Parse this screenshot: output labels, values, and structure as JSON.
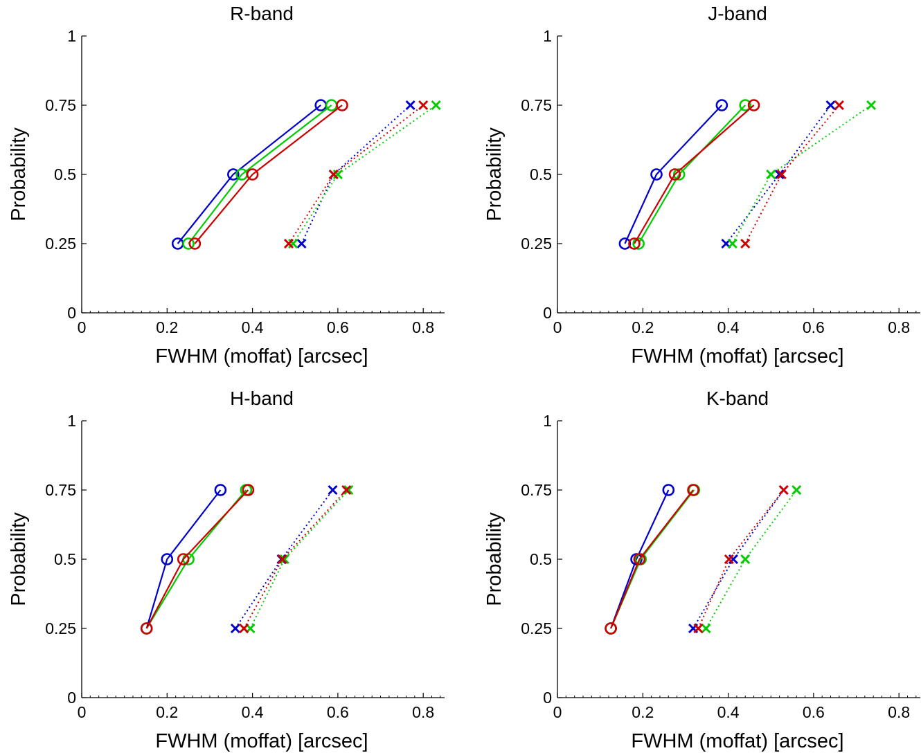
{
  "colors": {
    "blue": "#0000cc",
    "green": "#00cc00",
    "red": "#cc0000"
  },
  "chart_data": [
    {
      "type": "line",
      "title": "R-band",
      "xlabel": "FWHM (moffat) [arcsec]",
      "ylabel": "Probability",
      "xlim": [
        0,
        0.85
      ],
      "ylim": [
        0,
        1
      ],
      "xticks": [
        "0",
        "0.2",
        "0.4",
        "0.6",
        "0.8"
      ],
      "yticks": [
        "0",
        "0.25",
        "0.5",
        "0.75",
        "1"
      ],
      "grid": false,
      "series": [
        {
          "color": "#0000cc",
          "marker": "circle",
          "line": "solid",
          "x": [
            0.225,
            0.355,
            0.56
          ],
          "y": [
            0.25,
            0.5,
            0.75
          ]
        },
        {
          "color": "#00cc00",
          "marker": "circle",
          "line": "solid",
          "x": [
            0.25,
            0.375,
            0.585
          ],
          "y": [
            0.25,
            0.5,
            0.75
          ]
        },
        {
          "color": "#cc0000",
          "marker": "circle",
          "line": "solid",
          "x": [
            0.265,
            0.4,
            0.61
          ],
          "y": [
            0.25,
            0.5,
            0.75
          ]
        },
        {
          "color": "#0000cc",
          "marker": "x",
          "line": "dotted",
          "x": [
            0.515,
            0.59,
            0.77
          ],
          "y": [
            0.25,
            0.5,
            0.75
          ]
        },
        {
          "color": "#00cc00",
          "marker": "x",
          "line": "dotted",
          "x": [
            0.495,
            0.6,
            0.83
          ],
          "y": [
            0.25,
            0.5,
            0.75
          ]
        },
        {
          "color": "#cc0000",
          "marker": "x",
          "line": "dotted",
          "x": [
            0.485,
            0.59,
            0.8
          ],
          "y": [
            0.25,
            0.5,
            0.75
          ]
        }
      ]
    },
    {
      "type": "line",
      "title": "J-band",
      "xlabel": "FWHM (moffat) [arcsec]",
      "ylabel": "Probability",
      "xlim": [
        0,
        0.85
      ],
      "ylim": [
        0,
        1
      ],
      "xticks": [
        "0",
        "0.2",
        "0.4",
        "0.6",
        "0.8"
      ],
      "yticks": [
        "0",
        "0.25",
        "0.5",
        "0.75",
        "1"
      ],
      "grid": false,
      "series": [
        {
          "color": "#0000cc",
          "marker": "circle",
          "line": "solid",
          "x": [
            0.158,
            0.232,
            0.385
          ],
          "y": [
            0.25,
            0.5,
            0.75
          ]
        },
        {
          "color": "#00cc00",
          "marker": "circle",
          "line": "solid",
          "x": [
            0.19,
            0.285,
            0.44
          ],
          "y": [
            0.25,
            0.5,
            0.75
          ]
        },
        {
          "color": "#cc0000",
          "marker": "circle",
          "line": "solid",
          "x": [
            0.18,
            0.275,
            0.46
          ],
          "y": [
            0.25,
            0.5,
            0.75
          ]
        },
        {
          "color": "#0000cc",
          "marker": "x",
          "line": "dotted",
          "x": [
            0.395,
            0.52,
            0.64
          ],
          "y": [
            0.25,
            0.5,
            0.75
          ]
        },
        {
          "color": "#00cc00",
          "marker": "x",
          "line": "dotted",
          "x": [
            0.41,
            0.5,
            0.735
          ],
          "y": [
            0.25,
            0.5,
            0.75
          ]
        },
        {
          "color": "#cc0000",
          "marker": "x",
          "line": "dotted",
          "x": [
            0.44,
            0.525,
            0.66
          ],
          "y": [
            0.25,
            0.5,
            0.75
          ]
        }
      ]
    },
    {
      "type": "line",
      "title": "H-band",
      "xlabel": "FWHM (moffat) [arcsec]",
      "ylabel": "Probability",
      "xlim": [
        0,
        0.85
      ],
      "ylim": [
        0,
        1
      ],
      "xticks": [
        "0",
        "0.2",
        "0.4",
        "0.6",
        "0.8"
      ],
      "yticks": [
        "0",
        "0.25",
        "0.5",
        "0.75",
        "1"
      ],
      "grid": false,
      "series": [
        {
          "color": "#0000cc",
          "marker": "circle",
          "line": "solid",
          "x": [
            0.152,
            0.2,
            0.325
          ],
          "y": [
            0.25,
            0.5,
            0.75
          ]
        },
        {
          "color": "#00cc00",
          "marker": "circle",
          "line": "solid",
          "x": [
            0.152,
            0.25,
            0.385
          ],
          "y": [
            0.25,
            0.5,
            0.75
          ]
        },
        {
          "color": "#cc0000",
          "marker": "circle",
          "line": "solid",
          "x": [
            0.152,
            0.238,
            0.39
          ],
          "y": [
            0.25,
            0.5,
            0.75
          ]
        },
        {
          "color": "#0000cc",
          "marker": "x",
          "line": "dotted",
          "x": [
            0.36,
            0.468,
            0.588
          ],
          "y": [
            0.25,
            0.5,
            0.75
          ]
        },
        {
          "color": "#00cc00",
          "marker": "x",
          "line": "dotted",
          "x": [
            0.395,
            0.475,
            0.625
          ],
          "y": [
            0.25,
            0.5,
            0.75
          ]
        },
        {
          "color": "#cc0000",
          "marker": "x",
          "line": "dotted",
          "x": [
            0.38,
            0.47,
            0.62
          ],
          "y": [
            0.25,
            0.5,
            0.75
          ]
        }
      ]
    },
    {
      "type": "line",
      "title": "K-band",
      "xlabel": "FWHM (moffat) [arcsec]",
      "ylabel": "Probability",
      "xlim": [
        0,
        0.85
      ],
      "ylim": [
        0,
        1
      ],
      "xticks": [
        "0",
        "0.2",
        "0.4",
        "0.6",
        "0.8"
      ],
      "yticks": [
        "0",
        "0.25",
        "0.5",
        "0.75",
        "1"
      ],
      "grid": false,
      "series": [
        {
          "color": "#0000cc",
          "marker": "circle",
          "line": "solid",
          "x": [
            0.125,
            0.185,
            0.26
          ],
          "y": [
            0.25,
            0.5,
            0.75
          ]
        },
        {
          "color": "#00cc00",
          "marker": "circle",
          "line": "solid",
          "x": [
            0.125,
            0.195,
            0.32
          ],
          "y": [
            0.25,
            0.5,
            0.75
          ]
        },
        {
          "color": "#cc0000",
          "marker": "circle",
          "line": "solid",
          "x": [
            0.125,
            0.192,
            0.318
          ],
          "y": [
            0.25,
            0.5,
            0.75
          ]
        },
        {
          "color": "#0000cc",
          "marker": "x",
          "line": "dotted",
          "x": [
            0.318,
            0.412,
            0.53
          ],
          "y": [
            0.25,
            0.5,
            0.75
          ]
        },
        {
          "color": "#00cc00",
          "marker": "x",
          "line": "dotted",
          "x": [
            0.348,
            0.44,
            0.56
          ],
          "y": [
            0.25,
            0.5,
            0.75
          ]
        },
        {
          "color": "#cc0000",
          "marker": "x",
          "line": "dotted",
          "x": [
            0.33,
            0.402,
            0.53
          ],
          "y": [
            0.25,
            0.5,
            0.75
          ]
        }
      ]
    }
  ]
}
